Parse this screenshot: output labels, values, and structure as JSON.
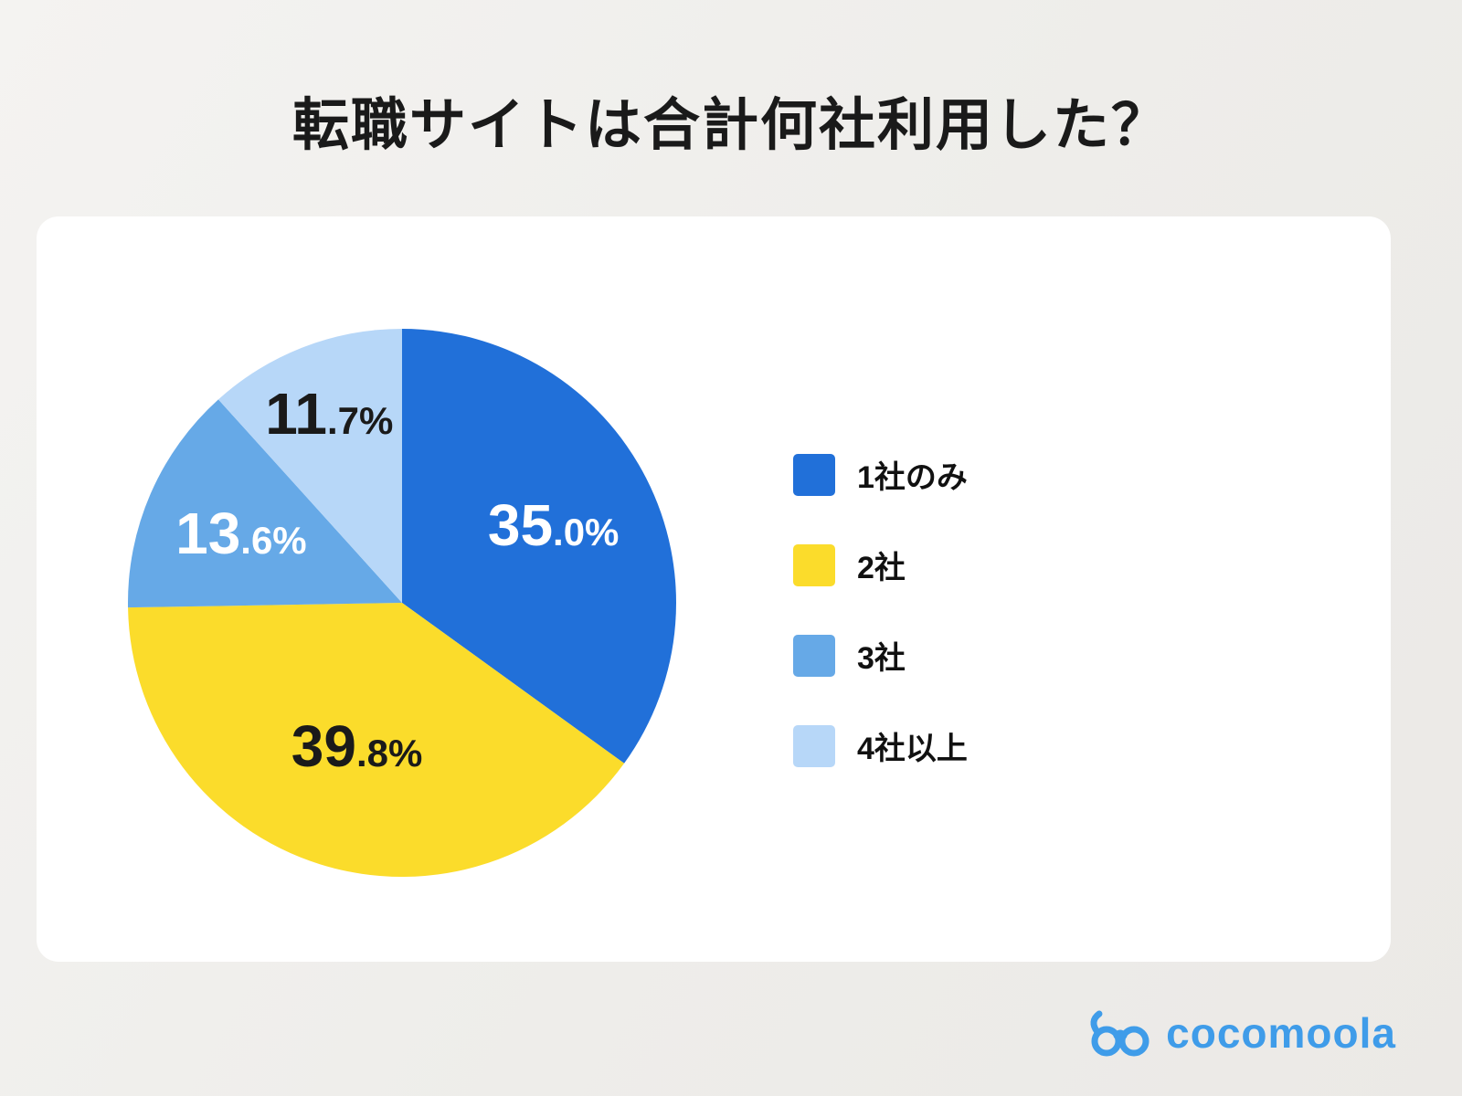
{
  "page": {
    "title": "転職サイトは合計何社利用した？"
  },
  "chart_data": {
    "type": "pie",
    "title": "転職サイトは合計何社利用した？",
    "categories": [
      "1社のみ",
      "2社",
      "3社",
      "4社以上"
    ],
    "values": [
      35.0,
      39.8,
      13.6,
      11.7
    ],
    "unit": "%",
    "colors": [
      "#2170d9",
      "#fbdc2b",
      "#66a9e7",
      "#b7d7f8"
    ],
    "value_label_colors": [
      "#ffffff",
      "#1a1a1a",
      "#ffffff",
      "#1a1a1a"
    ],
    "start_angle_deg": 0,
    "direction": "clockwise",
    "legend_position": "right",
    "annotations": [
      "35.0%",
      "39.8%",
      "13.6%",
      "11.7%"
    ]
  },
  "logo": {
    "text": "cocomoola",
    "color": "#3f9ce9"
  }
}
